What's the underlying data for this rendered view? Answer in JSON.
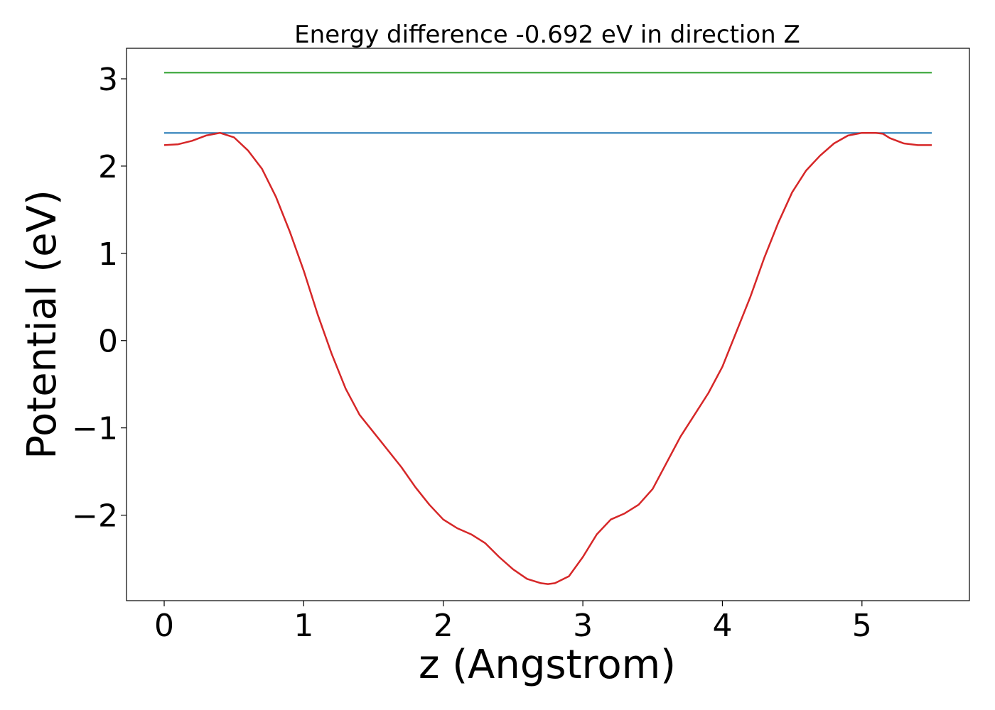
{
  "chart_data": {
    "type": "line",
    "title": "Energy difference -0.692 eV in direction Z",
    "xlabel": "z (Angstrom)",
    "ylabel": "Potential (eV)",
    "xlim": [
      -0.27,
      5.77
    ],
    "ylim": [
      -2.98,
      3.35
    ],
    "xticks": [
      0,
      1,
      2,
      3,
      4,
      5
    ],
    "xtick_labels": [
      "0",
      "1",
      "2",
      "3",
      "4",
      "5"
    ],
    "yticks": [
      -2,
      -1,
      0,
      1,
      2,
      3
    ],
    "ytick_labels": [
      "−2",
      "−1",
      "0",
      "1",
      "2",
      "3"
    ],
    "grid": false,
    "series": [
      {
        "color": "#d62728",
        "x": [
          0,
          0.1,
          0.2,
          0.3,
          0.4,
          0.5,
          0.6,
          0.7,
          0.8,
          0.9,
          1.0,
          1.1,
          1.2,
          1.3,
          1.4,
          1.5,
          1.6,
          1.7,
          1.8,
          1.9,
          2.0,
          2.1,
          2.2,
          2.3,
          2.4,
          2.5,
          2.6,
          2.7,
          2.75,
          2.8,
          2.9,
          3.0,
          3.1,
          3.2,
          3.3,
          3.4,
          3.5,
          3.6,
          3.7,
          3.8,
          3.9,
          4.0,
          4.1,
          4.2,
          4.3,
          4.4,
          4.5,
          4.6,
          4.7,
          4.8,
          4.9,
          5.0,
          5.1,
          5.15,
          5.2,
          5.3,
          5.4,
          5.5
        ],
        "y": [
          2.24,
          2.25,
          2.29,
          2.35,
          2.38,
          2.33,
          2.18,
          1.97,
          1.65,
          1.25,
          0.8,
          0.3,
          -0.15,
          -0.55,
          -0.85,
          -1.05,
          -1.25,
          -1.45,
          -1.68,
          -1.88,
          -2.05,
          -2.15,
          -2.22,
          -2.32,
          -2.48,
          -2.62,
          -2.73,
          -2.78,
          -2.79,
          -2.78,
          -2.7,
          -2.48,
          -2.22,
          -2.05,
          -1.98,
          -1.88,
          -1.7,
          -1.4,
          -1.1,
          -0.85,
          -0.6,
          -0.3,
          0.1,
          0.5,
          0.95,
          1.35,
          1.7,
          1.95,
          2.12,
          2.26,
          2.35,
          2.38,
          2.38,
          2.37,
          2.32,
          2.26,
          2.24,
          2.24
        ]
      },
      {
        "color": "#1f77b4",
        "x": [
          0,
          5.5
        ],
        "y": [
          2.38,
          2.38
        ]
      },
      {
        "color": "#2ca02c",
        "x": [
          0,
          5.5
        ],
        "y": [
          3.07,
          3.07
        ]
      }
    ]
  }
}
